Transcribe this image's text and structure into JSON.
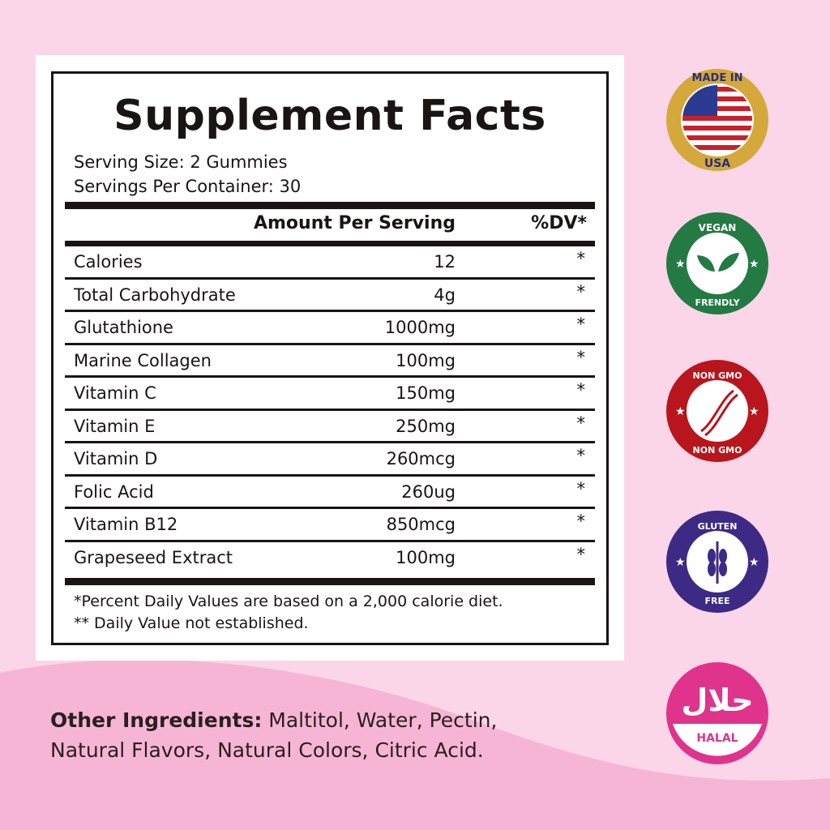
{
  "label": {
    "title": "Supplement Facts",
    "serving_size": "Serving Size: 2 Gummies",
    "servings_per_container": "Servings Per Container: 30",
    "amount_header": "Amount Per Serving",
    "dv_header": "%DV*",
    "rows": [
      {
        "name": "Calories",
        "amount": "12",
        "dv": "*"
      },
      {
        "name": "Total Carbohydrate",
        "amount": "4g",
        "dv": "*"
      },
      {
        "name": "Glutathione",
        "amount": "1000mg",
        "dv": "*"
      },
      {
        "name": "Marine Collagen",
        "amount": "100mg",
        "dv": "*"
      },
      {
        "name": "Vitamin C",
        "amount": "150mg",
        "dv": "*"
      },
      {
        "name": "Vitamin E",
        "amount": "250mg",
        "dv": "*"
      },
      {
        "name": "Vitamin D",
        "amount": "260mcg",
        "dv": "*"
      },
      {
        "name": "Folic Acid",
        "amount": "260ug",
        "dv": "*"
      },
      {
        "name": "Vitamin B12",
        "amount": "850mcg",
        "dv": "*"
      },
      {
        "name": "Grapeseed Extract",
        "amount": "100mg",
        "dv": "*"
      }
    ],
    "footnote1": "*Percent Daily Values are based on a 2,000 calorie diet.",
    "footnote2": "** Daily Value not established."
  },
  "other_ingredients": {
    "label": "Other Ingredients:",
    "line1": " Maltitol, Water, Pectin,",
    "line2": "Natural  Flavors, Natural Colors, Citric Acid."
  },
  "badges": [
    {
      "icon": "usa-flag-icon",
      "top": "MADE IN",
      "bottom": "USA",
      "color": "#d4a83a"
    },
    {
      "icon": "leaf-icon",
      "top": "VEGAN",
      "bottom": "FRENDLY",
      "color": "#237a43"
    },
    {
      "icon": "dna-icon",
      "top": "NON GMO",
      "bottom": "NON GMO",
      "color": "#b8161c"
    },
    {
      "icon": "wheat-icon",
      "top": "GLUTEN",
      "bottom": "FREE",
      "color": "#3d2a85"
    },
    {
      "icon": "halal-icon",
      "bottom": "HALAL",
      "color": "#e0338c"
    }
  ]
}
